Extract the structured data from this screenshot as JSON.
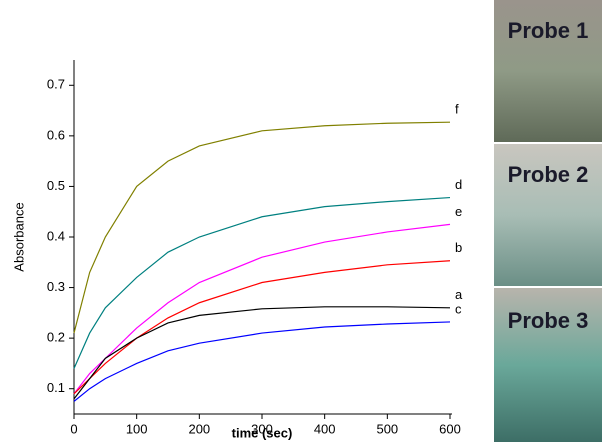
{
  "chart_data": {
    "type": "line",
    "x_label": "time (sec)",
    "y_label": "Absorbance",
    "x": [
      0,
      25,
      50,
      100,
      150,
      200,
      300,
      400,
      500,
      600
    ],
    "series": [
      {
        "name": "f",
        "color": "#808000",
        "values": [
          0.21,
          0.33,
          0.4,
          0.5,
          0.55,
          0.58,
          0.61,
          0.62,
          0.625,
          0.627
        ]
      },
      {
        "name": "d",
        "color": "#008080",
        "values": [
          0.14,
          0.21,
          0.26,
          0.32,
          0.37,
          0.4,
          0.44,
          0.46,
          0.47,
          0.478
        ]
      },
      {
        "name": "e",
        "color": "#ff00ff",
        "values": [
          0.09,
          0.13,
          0.16,
          0.22,
          0.27,
          0.31,
          0.36,
          0.39,
          0.41,
          0.425
        ]
      },
      {
        "name": "b",
        "color": "#ff0000",
        "values": [
          0.09,
          0.12,
          0.15,
          0.2,
          0.24,
          0.27,
          0.31,
          0.33,
          0.345,
          0.353
        ]
      },
      {
        "name": "a",
        "color": "#000000",
        "values": [
          0.08,
          0.12,
          0.16,
          0.2,
          0.23,
          0.245,
          0.258,
          0.262,
          0.262,
          0.26
        ]
      },
      {
        "name": "c",
        "color": "#0000ff",
        "values": [
          0.075,
          0.1,
          0.12,
          0.15,
          0.175,
          0.19,
          0.21,
          0.222,
          0.228,
          0.232
        ]
      }
    ],
    "xlim": [
      0,
      600
    ],
    "ylim": [
      0.05,
      0.75
    ],
    "xticks": [
      0,
      100,
      200,
      300,
      400,
      500,
      600
    ],
    "yticks": [
      0.1,
      0.2,
      0.3,
      0.4,
      0.5,
      0.6,
      0.7
    ]
  },
  "images": [
    {
      "label": "Probe 1"
    },
    {
      "label": "Probe 2"
    },
    {
      "label": "Probe 3"
    }
  ]
}
